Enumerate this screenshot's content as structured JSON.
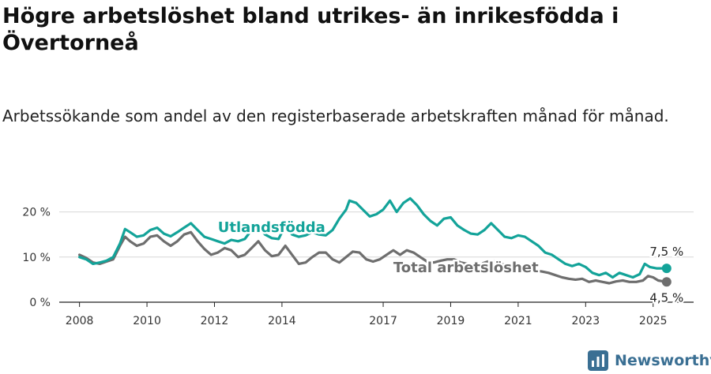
{
  "title": "Högre arbetslöshet bland utrikes- än inrikesfödda i Övertorneå",
  "subtitle": "Arbetssökande som andel av den registerbaserade arbetskraften månad för månad.",
  "brand": {
    "name": "Newsworthy",
    "icon": "newsworthy-logo-icon"
  },
  "colors": {
    "foreign_born": "#13a399",
    "total": "#6e6e6e",
    "grid": "#d6d6d6",
    "axis": "#222222"
  },
  "chart_data": {
    "type": "line",
    "title": "Högre arbetslöshet bland utrikes- än inrikesfödda i Övertorneå",
    "subtitle": "Arbetssökande som andel av den registerbaserade arbetskraften månad för månad.",
    "xlabel": "",
    "ylabel": "",
    "xlim": [
      2007.4,
      2026.2
    ],
    "ylim": [
      0,
      25
    ],
    "y_ticks": [
      0,
      10,
      20
    ],
    "y_tick_labels": [
      "0 %",
      "10 %",
      "20 %"
    ],
    "x_ticks": [
      2008,
      2010,
      2012,
      2014,
      2017,
      2019,
      2021,
      2023,
      2025
    ],
    "x_tick_labels": [
      "2008",
      "2010",
      "2012",
      "2014",
      "2017",
      "2019",
      "2021",
      "2023",
      "2025"
    ],
    "grid": true,
    "series": [
      {
        "name": "Utlandsfödda",
        "color": "#13a399",
        "end_label": "7,5 %",
        "points": [
          [
            2008.0,
            10
          ],
          [
            2008.2,
            9.5
          ],
          [
            2008.4,
            8.5
          ],
          [
            2008.6,
            8.8
          ],
          [
            2008.8,
            9.2
          ],
          [
            2009.0,
            10
          ],
          [
            2009.2,
            13
          ],
          [
            2009.35,
            16.2
          ],
          [
            2009.5,
            15.5
          ],
          [
            2009.7,
            14.5
          ],
          [
            2009.9,
            14.8
          ],
          [
            2010.1,
            16.0
          ],
          [
            2010.3,
            16.5
          ],
          [
            2010.5,
            15.2
          ],
          [
            2010.7,
            14.6
          ],
          [
            2010.9,
            15.5
          ],
          [
            2011.1,
            16.5
          ],
          [
            2011.3,
            17.5
          ],
          [
            2011.5,
            16.0
          ],
          [
            2011.7,
            14.5
          ],
          [
            2011.9,
            14.0
          ],
          [
            2012.1,
            13.5
          ],
          [
            2012.3,
            13.0
          ],
          [
            2012.5,
            13.8
          ],
          [
            2012.7,
            13.5
          ],
          [
            2012.9,
            14.0
          ],
          [
            2013.1,
            16.0
          ],
          [
            2013.3,
            16.8
          ],
          [
            2013.5,
            15.0
          ],
          [
            2013.7,
            14.2
          ],
          [
            2013.9,
            14.0
          ],
          [
            2014.1,
            17.0
          ],
          [
            2014.3,
            15.0
          ],
          [
            2014.5,
            14.5
          ],
          [
            2014.7,
            14.8
          ],
          [
            2014.9,
            15.5
          ],
          [
            2015.1,
            15.0
          ],
          [
            2015.3,
            14.8
          ],
          [
            2015.5,
            16.0
          ],
          [
            2015.7,
            18.5
          ],
          [
            2015.9,
            20.5
          ],
          [
            2016.0,
            22.5
          ],
          [
            2016.2,
            22.0
          ],
          [
            2016.4,
            20.5
          ],
          [
            2016.6,
            19.0
          ],
          [
            2016.8,
            19.5
          ],
          [
            2017.0,
            20.5
          ],
          [
            2017.2,
            22.5
          ],
          [
            2017.4,
            20.0
          ],
          [
            2017.6,
            22.0
          ],
          [
            2017.8,
            23.0
          ],
          [
            2018.0,
            21.5
          ],
          [
            2018.2,
            19.5
          ],
          [
            2018.4,
            18.0
          ],
          [
            2018.6,
            17.0
          ],
          [
            2018.8,
            18.5
          ],
          [
            2019.0,
            18.8
          ],
          [
            2019.2,
            17.0
          ],
          [
            2019.4,
            16.0
          ],
          [
            2019.6,
            15.2
          ],
          [
            2019.8,
            15.0
          ],
          [
            2020.0,
            16.0
          ],
          [
            2020.2,
            17.5
          ],
          [
            2020.4,
            16.0
          ],
          [
            2020.6,
            14.5
          ],
          [
            2020.8,
            14.2
          ],
          [
            2021.0,
            14.8
          ],
          [
            2021.2,
            14.5
          ],
          [
            2021.4,
            13.5
          ],
          [
            2021.6,
            12.5
          ],
          [
            2021.8,
            11.0
          ],
          [
            2022.0,
            10.5
          ],
          [
            2022.2,
            9.5
          ],
          [
            2022.4,
            8.5
          ],
          [
            2022.6,
            8.0
          ],
          [
            2022.8,
            8.5
          ],
          [
            2023.0,
            7.8
          ],
          [
            2023.2,
            6.5
          ],
          [
            2023.4,
            6.0
          ],
          [
            2023.6,
            6.5
          ],
          [
            2023.8,
            5.5
          ],
          [
            2024.0,
            6.5
          ],
          [
            2024.2,
            6.0
          ],
          [
            2024.4,
            5.5
          ],
          [
            2024.6,
            6.2
          ],
          [
            2024.75,
            8.5
          ],
          [
            2024.9,
            7.8
          ],
          [
            2025.1,
            7.5
          ],
          [
            2025.4,
            7.5
          ]
        ]
      },
      {
        "name": "Total arbetslöshet",
        "color": "#6e6e6e",
        "end_label": "4,5 %",
        "points": [
          [
            2008.0,
            10.5
          ],
          [
            2008.2,
            9.8
          ],
          [
            2008.4,
            8.8
          ],
          [
            2008.6,
            8.5
          ],
          [
            2008.8,
            9.0
          ],
          [
            2009.0,
            9.5
          ],
          [
            2009.2,
            12.5
          ],
          [
            2009.35,
            14.5
          ],
          [
            2009.5,
            13.5
          ],
          [
            2009.7,
            12.5
          ],
          [
            2009.9,
            13.0
          ],
          [
            2010.1,
            14.5
          ],
          [
            2010.3,
            14.8
          ],
          [
            2010.5,
            13.5
          ],
          [
            2010.7,
            12.5
          ],
          [
            2010.9,
            13.5
          ],
          [
            2011.1,
            15.0
          ],
          [
            2011.3,
            15.5
          ],
          [
            2011.5,
            13.5
          ],
          [
            2011.7,
            11.8
          ],
          [
            2011.9,
            10.5
          ],
          [
            2012.1,
            11.0
          ],
          [
            2012.3,
            12.0
          ],
          [
            2012.5,
            11.5
          ],
          [
            2012.7,
            10.0
          ],
          [
            2012.9,
            10.5
          ],
          [
            2013.1,
            12.0
          ],
          [
            2013.3,
            13.5
          ],
          [
            2013.5,
            11.5
          ],
          [
            2013.7,
            10.2
          ],
          [
            2013.9,
            10.5
          ],
          [
            2014.1,
            12.5
          ],
          [
            2014.3,
            10.5
          ],
          [
            2014.5,
            8.5
          ],
          [
            2014.7,
            8.8
          ],
          [
            2014.9,
            10.0
          ],
          [
            2015.1,
            11.0
          ],
          [
            2015.3,
            11.0
          ],
          [
            2015.5,
            9.5
          ],
          [
            2015.7,
            8.8
          ],
          [
            2015.9,
            10.0
          ],
          [
            2016.1,
            11.2
          ],
          [
            2016.3,
            11.0
          ],
          [
            2016.5,
            9.5
          ],
          [
            2016.7,
            9.0
          ],
          [
            2016.9,
            9.5
          ],
          [
            2017.1,
            10.5
          ],
          [
            2017.3,
            11.5
          ],
          [
            2017.5,
            10.5
          ],
          [
            2017.7,
            11.5
          ],
          [
            2017.9,
            11.0
          ],
          [
            2018.1,
            10.0
          ],
          [
            2018.3,
            9.0
          ],
          [
            2018.5,
            8.8
          ],
          [
            2018.7,
            9.2
          ],
          [
            2018.9,
            9.5
          ],
          [
            2019.1,
            9.5
          ],
          [
            2019.3,
            8.8
          ],
          [
            2019.5,
            8.5
          ],
          [
            2019.7,
            8.2
          ],
          [
            2019.9,
            8.5
          ],
          [
            2020.1,
            9.0
          ],
          [
            2020.3,
            9.2
          ],
          [
            2020.5,
            8.5
          ],
          [
            2020.7,
            8.0
          ],
          [
            2020.9,
            7.8
          ],
          [
            2021.1,
            8.0
          ],
          [
            2021.3,
            7.5
          ],
          [
            2021.5,
            7.0
          ],
          [
            2021.7,
            6.8
          ],
          [
            2021.9,
            6.5
          ],
          [
            2022.1,
            6.0
          ],
          [
            2022.3,
            5.5
          ],
          [
            2022.5,
            5.2
          ],
          [
            2022.7,
            5.0
          ],
          [
            2022.9,
            5.2
          ],
          [
            2023.1,
            4.5
          ],
          [
            2023.3,
            4.8
          ],
          [
            2023.5,
            4.5
          ],
          [
            2023.7,
            4.2
          ],
          [
            2023.9,
            4.6
          ],
          [
            2024.1,
            4.8
          ],
          [
            2024.3,
            4.5
          ],
          [
            2024.5,
            4.5
          ],
          [
            2024.7,
            4.8
          ],
          [
            2024.85,
            5.8
          ],
          [
            2025.0,
            5.5
          ],
          [
            2025.15,
            4.8
          ],
          [
            2025.4,
            4.5
          ]
        ]
      }
    ]
  }
}
